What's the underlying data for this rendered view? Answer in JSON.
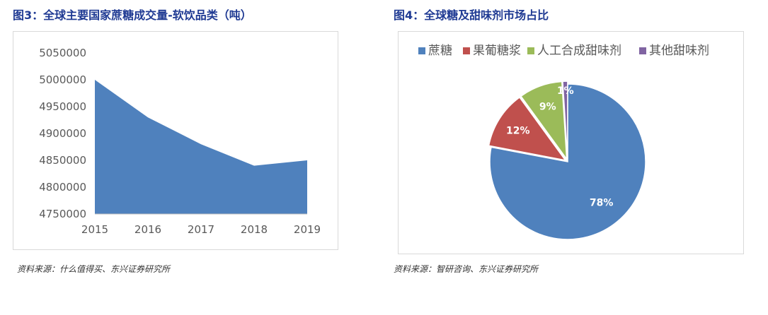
{
  "chart3": {
    "title": "图3：全球主要国家蔗糖成交量-软饮品类（吨）",
    "source": "资料来源：什么值得买、东兴证券研究所"
  },
  "chart4": {
    "title": "图4：全球糖及甜味剂市场占比",
    "source": "资料来源：智研咨询、东兴证券研究所"
  },
  "chart_data": [
    {
      "type": "area",
      "title": "图3：全球主要国家蔗糖成交量-软饮品类（吨）",
      "xlabel": "",
      "ylabel": "",
      "x": [
        "2015",
        "2016",
        "2017",
        "2018",
        "2019"
      ],
      "values": [
        5000000,
        4930000,
        4880000,
        4840000,
        4850000
      ],
      "ylim": [
        4750000,
        5050000
      ],
      "yticks": [
        "4750000",
        "4800000",
        "4850000",
        "4900000",
        "4950000",
        "5000000",
        "5050000"
      ],
      "grid": false,
      "color": "#4f81bd"
    },
    {
      "type": "pie",
      "title": "图4：全球糖及甜味剂市场占比",
      "legend_position": "top",
      "slices": [
        {
          "name": "蔗糖",
          "value": 78,
          "label": "78%",
          "color": "#4f81bd"
        },
        {
          "name": "果葡糖浆",
          "value": 12,
          "label": "12%",
          "color": "#c0504d"
        },
        {
          "name": "人工合成甜味剂",
          "value": 9,
          "label": "9%",
          "color": "#9bbb59"
        },
        {
          "name": "其他甜味剂",
          "value": 1,
          "label": "1%",
          "color": "#8064a2"
        }
      ]
    }
  ]
}
